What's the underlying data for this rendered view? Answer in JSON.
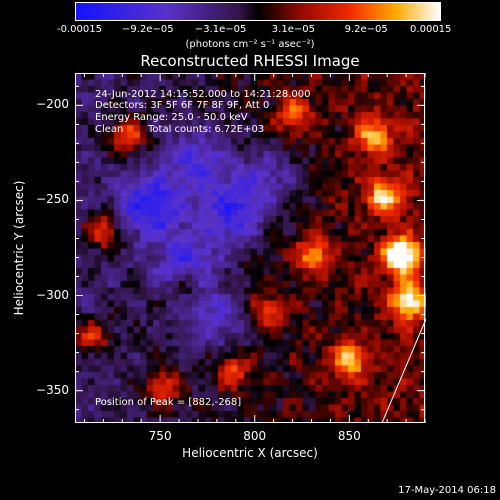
{
  "chart_data": {
    "type": "heatmap",
    "title": "Reconstructed RHESSI Image",
    "xlabel": "Heliocentric X (arcsec)",
    "ylabel": "Heliocentric Y (arcsec)",
    "xlim": [
      705,
      890
    ],
    "ylim": [
      -367,
      -183
    ],
    "x_ticks": [
      750,
      800,
      850
    ],
    "y_ticks": [
      -200,
      -250,
      -300,
      -350
    ],
    "colorbar": {
      "ticks": [
        "-0.00015",
        "−9.2e−05",
        "−3.1e−05",
        "3.1e−05",
        "9.2e−05",
        "0.00015"
      ],
      "units": "(photons cm⁻² s⁻¹ asec⁻²)",
      "range": [
        -0.00015,
        0.00015
      ]
    },
    "annotations": {
      "time_range": "24-Jun-2012 14:15:52.000 to 14:21:28.000",
      "detectors": "Detectors: 3F 5F 6F 7F 8F 9F, Att 0",
      "energy": "Energy Range: 25.0 - 50.0 keV",
      "method": "Clean",
      "counts": "Total counts: 6.72E+03",
      "peak": "Position of Peak = [882,-268]"
    },
    "peak_position": [
      882,
      -268
    ],
    "grid": false,
    "colormap": "rainbow-blue-red-white"
  },
  "footer": {
    "date": "17-May-2014 06:18"
  }
}
